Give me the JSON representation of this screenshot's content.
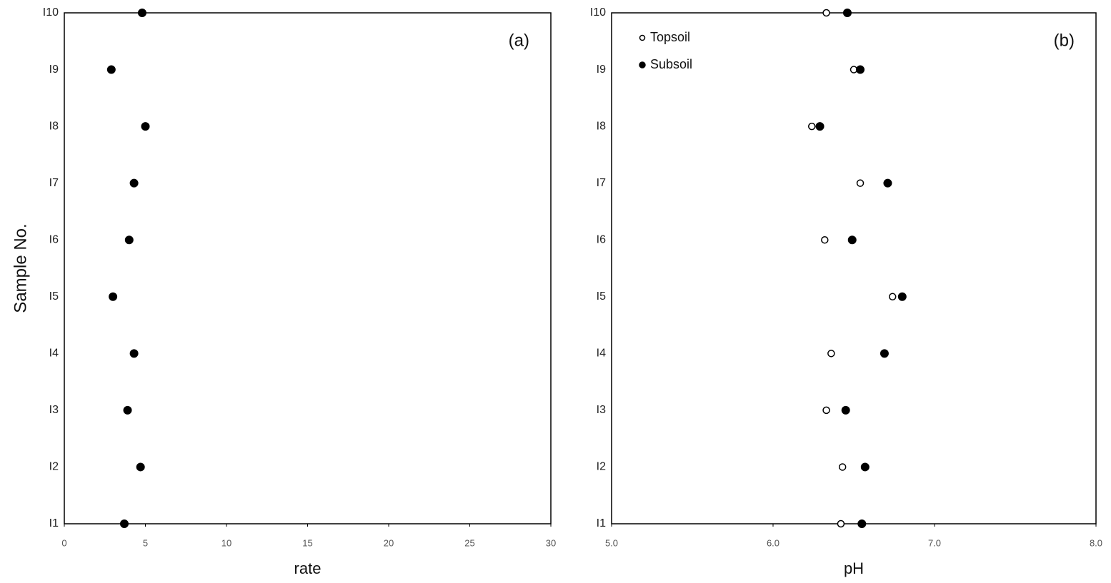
{
  "chart_data": [
    {
      "type": "scatter",
      "annotation": "(a)",
      "xlabel": "rate",
      "ylabel": "Sample No.",
      "categories": [
        "I1",
        "I2",
        "I3",
        "I4",
        "I5",
        "I6",
        "I7",
        "I8",
        "I9",
        "I10"
      ],
      "values": [
        3.7,
        4.7,
        3.9,
        4.3,
        3.0,
        4.0,
        4.3,
        5.0,
        2.9,
        4.8
      ],
      "color": "#000000",
      "xlim": [
        0,
        30
      ],
      "xticks": [
        0,
        5,
        10,
        15,
        20,
        25,
        30
      ]
    },
    {
      "type": "scatter",
      "annotation": "(b)",
      "xlabel": "pH",
      "legend": "upper left",
      "categories": [
        "I1",
        "I2",
        "I3",
        "I4",
        "I5",
        "I6",
        "I7",
        "I8",
        "I9",
        "I10"
      ],
      "series": [
        {
          "name": "Topsoil",
          "color": "#000000",
          "marker": "open",
          "values": [
            6.42,
            6.43,
            6.33,
            6.36,
            6.74,
            6.32,
            6.54,
            6.24,
            6.5,
            6.33
          ]
        },
        {
          "name": "Subsoil",
          "color": "#000000",
          "marker": "filled",
          "values": [
            6.55,
            6.57,
            6.45,
            6.69,
            6.8,
            6.49,
            6.71,
            6.29,
            6.54,
            6.46
          ]
        }
      ],
      "xlim": [
        5.0,
        8.0
      ],
      "xticks": [
        {
          "value": 5,
          "label": "5.0"
        },
        {
          "value": 6,
          "label": "6.0"
        },
        {
          "value": 7,
          "label": "7.0"
        },
        {
          "value": 8,
          "label": "8.0"
        }
      ]
    }
  ]
}
